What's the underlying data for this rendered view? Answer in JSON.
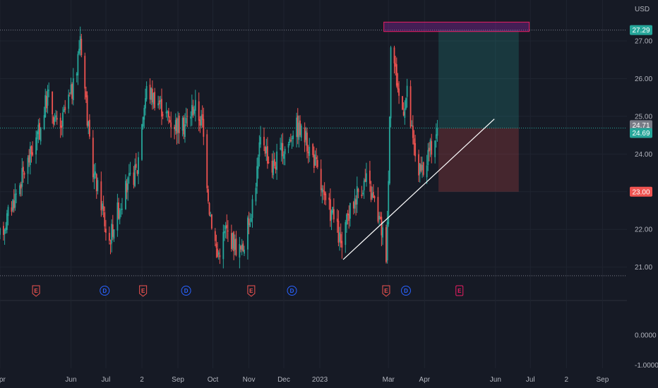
{
  "chart_data": {
    "type": "candlestick",
    "currency_label": "USD",
    "colors": {
      "up": "#26a69a",
      "down": "#ef5350",
      "background": "#161a25",
      "grid": "#1f2430",
      "text": "#b2b5be",
      "earnings": "#ef5350",
      "dividend": "#2962ff",
      "future_earnings": "#e91e63",
      "profit_zone": "#26a69a",
      "loss_zone": "#ef5350",
      "trendline": "#ffffff",
      "highlight_box": "#9c27b0"
    },
    "y_axis": {
      "range": [
        20.75,
        27.6
      ],
      "ticks": [
        "27.00",
        "26.00",
        "25.00",
        "24.00",
        "23.00",
        "22.00",
        "21.00"
      ]
    },
    "sub_axis": {
      "range": [
        -1.1,
        1.1
      ],
      "ticks": [
        "0.0000",
        "-1.0000"
      ]
    },
    "x_axis": {
      "start": "2022-04-01",
      "end": "2023-09-22",
      "ticks": [
        {
          "date": "2022-04-01",
          "label": "Apr"
        },
        {
          "date": "2022-06-01",
          "label": "Jun"
        },
        {
          "date": "2022-07-01",
          "label": "Jul"
        },
        {
          "date": "2022-08-01",
          "label": "2"
        },
        {
          "date": "2022-09-01",
          "label": "Sep"
        },
        {
          "date": "2022-10-01",
          "label": "Oct"
        },
        {
          "date": "2022-11-01",
          "label": "Nov"
        },
        {
          "date": "2022-12-01",
          "label": "Dec"
        },
        {
          "date": "2023-01-01",
          "label": "2023"
        },
        {
          "date": "2023-03-01",
          "label": "Mar"
        },
        {
          "date": "2023-04-01",
          "label": "Apr"
        },
        {
          "date": "2023-06-01",
          "label": "Jun"
        },
        {
          "date": "2023-07-01",
          "label": "Jul"
        },
        {
          "date": "2023-08-01",
          "label": "2"
        },
        {
          "date": "2023-09-01",
          "label": "Sep"
        }
      ]
    },
    "price_path": [
      [
        "2022-04-01",
        21.8
      ],
      [
        "2022-04-20",
        23.4
      ],
      [
        "2022-05-05",
        24.6
      ],
      [
        "2022-05-12",
        25.6
      ],
      [
        "2022-05-22",
        24.5
      ],
      [
        "2022-05-28",
        25.3
      ],
      [
        "2022-06-05",
        25.9
      ],
      [
        "2022-06-09",
        27.2
      ],
      [
        "2022-06-14",
        25.4
      ],
      [
        "2022-06-18",
        23.8
      ],
      [
        "2022-06-28",
        22.6
      ],
      [
        "2022-07-03",
        21.6
      ],
      [
        "2022-07-10",
        22.4
      ],
      [
        "2022-07-20",
        23.2
      ],
      [
        "2022-07-28",
        23.6
      ],
      [
        "2022-08-01",
        24.9
      ],
      [
        "2022-08-05",
        25.7
      ],
      [
        "2022-08-15",
        25.4
      ],
      [
        "2022-08-25",
        24.9
      ],
      [
        "2022-09-05",
        24.7
      ],
      [
        "2022-09-15",
        25.3
      ],
      [
        "2022-09-22",
        24.8
      ],
      [
        "2022-09-28",
        22.6
      ],
      [
        "2022-10-05",
        21.3
      ],
      [
        "2022-10-12",
        22.0
      ],
      [
        "2022-10-20",
        21.6
      ],
      [
        "2022-10-26",
        21.4
      ],
      [
        "2022-11-01",
        22.2
      ],
      [
        "2022-11-07",
        23.3
      ],
      [
        "2022-11-12",
        24.6
      ],
      [
        "2022-11-20",
        23.6
      ],
      [
        "2022-11-28",
        24.0
      ],
      [
        "2022-12-05",
        24.3
      ],
      [
        "2022-12-10",
        24.8
      ],
      [
        "2022-12-18",
        24.5
      ],
      [
        "2022-12-28",
        23.8
      ],
      [
        "2023-01-05",
        22.7
      ],
      [
        "2023-01-12",
        22.4
      ],
      [
        "2023-01-20",
        21.5
      ],
      [
        "2023-01-25",
        22.3
      ],
      [
        "2023-02-02",
        23.0
      ],
      [
        "2023-02-10",
        23.3
      ],
      [
        "2023-02-17",
        22.7
      ],
      [
        "2023-02-24",
        21.9
      ],
      [
        "2023-02-27",
        21.4
      ],
      [
        "2023-03-01",
        23.3
      ],
      [
        "2023-03-03",
        27.1
      ],
      [
        "2023-03-07",
        26.2
      ],
      [
        "2023-03-12",
        25.1
      ],
      [
        "2023-03-17",
        25.6
      ],
      [
        "2023-03-22",
        24.3
      ],
      [
        "2023-03-27",
        23.6
      ],
      [
        "2023-03-31",
        23.4
      ],
      [
        "2023-04-04",
        24.0
      ],
      [
        "2023-04-08",
        24.3
      ],
      [
        "2023-04-12",
        24.69
      ]
    ],
    "last_price": {
      "value": 24.69,
      "label": "24.69"
    },
    "marker_price": {
      "value": 24.71,
      "label": "24.71"
    },
    "stop_price": {
      "value": 23.0,
      "label": "23.00"
    },
    "target_price": {
      "value": 27.29,
      "label": "27.29"
    },
    "high_line": 27.29,
    "low_line": 20.77,
    "position_tool": {
      "start": "2023-04-13",
      "end": "2023-06-21",
      "entry": 24.69,
      "target": 27.29,
      "stop": 23.0
    },
    "highlight_box": {
      "start": "2023-02-25",
      "end": "2023-06-30",
      "top": 27.5,
      "bottom": 27.25
    },
    "trendline": {
      "start": {
        "date": "2023-01-21",
        "value": 21.2
      },
      "end": {
        "date": "2023-05-31",
        "value": 24.93
      }
    },
    "events": [
      {
        "date": "2022-05-02",
        "type": "E"
      },
      {
        "date": "2022-06-30",
        "type": "D"
      },
      {
        "date": "2022-08-02",
        "type": "E"
      },
      {
        "date": "2022-09-08",
        "type": "D"
      },
      {
        "date": "2022-11-03",
        "type": "E"
      },
      {
        "date": "2022-12-08",
        "type": "D"
      },
      {
        "date": "2023-02-27",
        "type": "E"
      },
      {
        "date": "2023-03-16",
        "type": "D"
      },
      {
        "date": "2023-05-01",
        "type": "E",
        "future": true
      }
    ]
  }
}
